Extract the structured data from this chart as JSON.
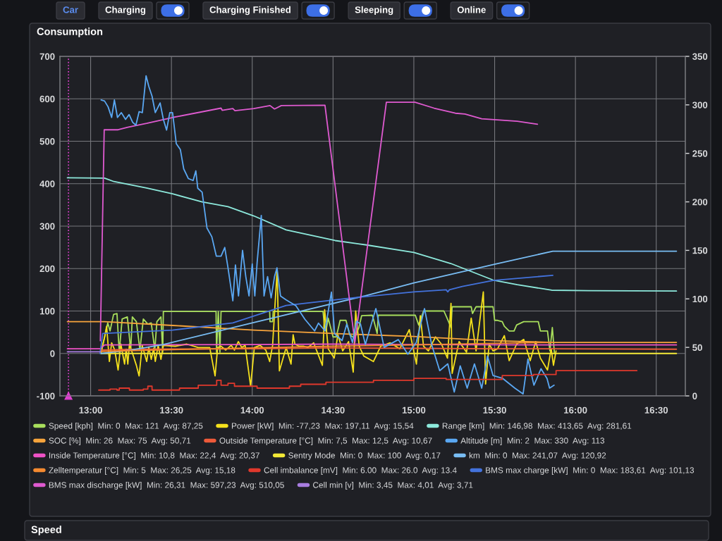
{
  "chart_data": {
    "type": "line",
    "title": "Consumption",
    "annotations": [
      "Car",
      "Charging",
      "Charging Finished",
      "Sleeping",
      "Online",
      "Speed"
    ],
    "xlim": [
      12.81,
      16.68
    ],
    "xticks": [
      {
        "value": 13,
        "label": "13:00"
      },
      {
        "value": 13.5,
        "label": "13:30"
      },
      {
        "value": 14,
        "label": "14:00"
      },
      {
        "value": 14.5,
        "label": "14:30"
      },
      {
        "value": 15,
        "label": "15:00"
      },
      {
        "value": 15.5,
        "label": "15:30"
      },
      {
        "value": 16,
        "label": "16:00"
      },
      {
        "value": 16.5,
        "label": "16:30"
      }
    ],
    "ylim": [
      -100,
      700
    ],
    "yticks": [
      -100,
      0,
      100,
      200,
      300,
      400,
      500,
      600,
      700
    ],
    "y2lim": [
      0,
      350
    ],
    "y2ticks": [
      0,
      50,
      100,
      150,
      200,
      250,
      300,
      350
    ],
    "grid": true,
    "legend": "bottom",
    "ref_lines": [
      {
        "axis": "x",
        "value": 12.863,
        "color": "#e040d0",
        "line_style": "dotted"
      }
    ],
    "series": [
      {
        "name": "Speed [kph]  Min: 0  Max: 121  Avg: 87,25",
        "color": "#a8de5c",
        "x": [
          13.064,
          13.085,
          13.106,
          13.12,
          13.142,
          13.163,
          13.177,
          13.195,
          13.227,
          13.248,
          13.258,
          13.283,
          13.305,
          13.326,
          13.354,
          13.375,
          13.397,
          13.41,
          13.435,
          13.446,
          13.45,
          13.776,
          13.779,
          13.79,
          13.8,
          13.807,
          14.108,
          14.11,
          14.126,
          14.13,
          14.438,
          14.448,
          14.456,
          14.47,
          14.5,
          14.52,
          14.544,
          14.58,
          14.603,
          14.633,
          14.66,
          14.677,
          14.743,
          14.75,
          14.773,
          14.78,
          15.009,
          15.03,
          15.06,
          15.186,
          15.208,
          15.23,
          15.237,
          15.355,
          15.363,
          15.385,
          15.49,
          15.5,
          15.518,
          15.547,
          15.56,
          15.59,
          15.62,
          15.636,
          15.68,
          15.77,
          15.783,
          15.827,
          15.842,
          15.857,
          15.87
        ],
        "values": [
          0,
          36,
          72,
          53,
          92,
          94,
          3,
          81,
          86,
          8,
          86,
          75,
          8,
          81,
          69,
          72,
          8,
          75,
          86,
          3,
          99,
          99,
          3,
          99,
          3,
          99,
          99,
          75,
          75,
          99,
          99,
          61,
          53,
          83,
          39,
          39,
          78,
          78,
          44,
          36,
          61,
          89,
          90,
          81,
          47,
          90,
          90,
          67,
          100,
          100,
          81,
          61,
          110,
          110,
          94,
          110,
          110,
          78,
          78,
          75,
          64,
          53,
          53,
          67,
          75,
          75,
          53,
          53,
          6,
          61,
          0
        ]
      },
      {
        "name": "Power [kW]  Min: -77,23  Max: 197,11  Avg: 15,54",
        "color": "#f4e01c",
        "x": [
          13.064,
          13.085,
          13.099,
          13.116,
          13.13,
          13.149,
          13.17,
          13.187,
          13.21,
          13.22,
          13.23,
          13.24,
          13.266,
          13.283,
          13.3,
          13.319,
          13.347,
          13.36,
          13.375,
          13.39,
          13.4,
          13.418,
          13.435,
          13.45,
          13.524,
          13.595,
          13.666,
          13.737,
          13.77,
          13.786,
          13.807,
          13.836,
          13.87,
          13.89,
          13.914,
          13.935,
          13.956,
          13.99,
          14.013,
          14.048,
          14.084,
          14.108,
          14.126,
          14.154,
          14.168,
          14.21,
          14.24,
          14.253,
          14.264,
          14.29,
          14.32,
          14.345,
          14.38,
          14.434,
          14.448,
          14.47,
          14.507,
          14.53,
          14.56,
          14.596,
          14.625,
          14.64,
          14.662,
          14.69,
          14.75,
          14.795,
          14.854,
          14.913,
          14.972,
          15.016,
          15.04,
          15.06,
          15.09,
          15.134,
          15.171,
          15.208,
          15.23,
          15.237,
          15.28,
          15.326,
          15.355,
          15.385,
          15.43,
          15.444,
          15.466,
          15.49,
          15.518,
          15.56,
          15.59,
          15.636,
          15.68,
          15.72,
          15.754,
          15.783,
          15.827,
          15.85,
          15.864,
          15.88
        ],
        "values": [
          3,
          36,
          64,
          -19,
          25,
          8,
          -39,
          22,
          -25,
          10,
          -25,
          22,
          -8,
          -28,
          -53,
          19,
          -19,
          15,
          -14,
          12,
          -19,
          19,
          -14,
          19,
          17,
          22,
          14,
          14,
          -53,
          14,
          17,
          8,
          19,
          8,
          28,
          14,
          19,
          -77,
          14,
          19,
          8,
          -19,
          19,
          197,
          -41,
          14,
          -25,
          44,
          22,
          17,
          17,
          14,
          25,
          -28,
          103,
          11,
          -11,
          44,
          6,
          28,
          -44,
          100,
          17,
          -6,
          -19,
          17,
          25,
          11,
          56,
          -25,
          89,
          17,
          6,
          39,
          22,
          -11,
          118,
          -47,
          28,
          3,
          83,
          6,
          145,
          -72,
          22,
          6,
          11,
          42,
          -17,
          22,
          33,
          -17,
          28,
          -11,
          -39,
          11,
          -28,
          6
        ]
      },
      {
        "name": "Range [km]  Min: 146,98  Max: 413,65  Avg: 281,61",
        "color": "#8de9dc",
        "x": [
          12.856,
          13.086,
          13.144,
          13.346,
          13.507,
          13.69,
          13.85,
          14.01,
          14.21,
          14.513,
          14.7,
          15.0,
          15.228,
          15.49,
          15.64,
          15.853,
          16.08,
          16.625
        ],
        "values": [
          414,
          413,
          405,
          390,
          376,
          357,
          346,
          324,
          291,
          266,
          256,
          238,
          212,
          173,
          162,
          149,
          148,
          147
        ]
      },
      {
        "name": "SOC [%]  Min: 26  Max: 75  Avg: 50,71",
        "color": "#f7a43c",
        "x": [
          12.856,
          13.086,
          13.507,
          14.01,
          14.5,
          15.0,
          15.49,
          15.86,
          16.625
        ],
        "values": [
          75,
          75,
          66,
          55,
          47,
          40,
          30,
          26,
          26
        ]
      },
      {
        "name": "Outside Temperature [°C]  Min: 7,5  Max: 12,5  Avg: 10,67",
        "color": "#ee5a3a",
        "x": [
          13.064,
          13.3,
          14.0,
          14.5,
          15.0,
          15.5,
          15.86,
          16.625
        ],
        "values": [
          8,
          10,
          11,
          13,
          12,
          11,
          11,
          10
        ]
      },
      {
        "name": "Altitude [m]  Min: 2  Max: 330  Avg: 113",
        "color": "#5aa7f2",
        "axis": "y2",
        "x": [
          13.065,
          13.086,
          13.108,
          13.13,
          13.147,
          13.166,
          13.19,
          13.216,
          13.238,
          13.26,
          13.28,
          13.3,
          13.32,
          13.343,
          13.36,
          13.38,
          13.4,
          13.43,
          13.45,
          13.47,
          13.49,
          13.507,
          13.53,
          13.555,
          13.576,
          13.605,
          13.634,
          13.651,
          13.663,
          13.69,
          13.72,
          13.75,
          13.778,
          13.807,
          13.83,
          13.85,
          13.88,
          13.896,
          13.915,
          13.94,
          13.96,
          13.98,
          14.0,
          14.016,
          14.03,
          14.056,
          14.073,
          14.095,
          14.117,
          14.138,
          14.153,
          14.175,
          14.21,
          14.27,
          14.326,
          14.386,
          14.41,
          14.45,
          14.49,
          14.51,
          14.556,
          14.585,
          14.62,
          14.645,
          14.67,
          14.7,
          14.765,
          14.816,
          14.904,
          14.963,
          15.015,
          15.066,
          15.11,
          15.16,
          15.21,
          15.25,
          15.287,
          15.33,
          15.375,
          15.42,
          15.456,
          15.49,
          15.55,
          15.625,
          15.676,
          15.706,
          15.743,
          15.787,
          15.824,
          15.84,
          15.868
        ],
        "values": [
          305,
          304,
          298,
          287,
          305,
          287,
          292,
          285,
          290,
          282,
          279,
          293,
          292,
          330,
          319,
          309,
          292,
          302,
          285,
          274,
          292,
          292,
          260,
          254,
          234,
          224,
          222,
          232,
          214,
          210,
          173,
          164,
          144,
          144,
          153,
          132,
          98,
          135,
          103,
          150,
          123,
          103,
          136,
          103,
          137,
          186,
          103,
          123,
          101,
          123,
          132,
          103,
          99,
          93,
          79,
          67,
          75,
          67,
          107,
          64,
          57,
          74,
          55,
          77,
          74,
          53,
          90,
          50,
          58,
          43,
          55,
          90,
          53,
          26,
          33,
          4,
          31,
          8,
          33,
          8,
          41,
          21,
          18,
          8,
          2,
          38,
          11,
          28,
          18,
          8,
          11
        ]
      },
      {
        "name": "Inside Temperature [°C]  Min: 10,8  Max: 22,4  Avg: 20,37",
        "color": "#ef52c6",
        "x": [
          12.856,
          13.058,
          13.086,
          14.0,
          14.5,
          15.0,
          15.85,
          16.625
        ],
        "values": [
          11,
          11,
          20,
          21,
          22,
          21,
          20,
          20
        ]
      },
      {
        "name": "Sentry Mode  Min: 0  Max: 100  Avg: 0,17",
        "color": "#f2e836",
        "x": [
          13.064,
          16.625
        ],
        "values": [
          0,
          0
        ]
      },
      {
        "name": "km  Min: 0  Max: 241,07  Avg: 120,92",
        "color": "#79bdf4",
        "x": [
          13.065,
          13.25,
          13.45,
          14.0,
          14.7,
          15.0,
          15.5,
          15.86,
          16.625
        ],
        "values": [
          0,
          8,
          21,
          72,
          136,
          166,
          210,
          241,
          241
        ]
      },
      {
        "name": "Zelltemperatur [°C]  Min: 5  Max: 26,25  Avg: 15,18",
        "color": "#f58a30",
        "x": [
          13.064,
          13.5,
          14.0,
          14.5,
          15.0,
          15.5,
          15.86
        ],
        "values": [
          5,
          9,
          13,
          17,
          20,
          24,
          26
        ]
      },
      {
        "name": "Cell imbalance [mV]  Min: 6.00  Max: 26.0  Avg: 13.4",
        "color": "#e0382c",
        "type": "step",
        "axis": "y2",
        "x": [
          13.05,
          13.12,
          13.163,
          13.177,
          13.24,
          13.326,
          13.354,
          13.38,
          13.5,
          13.55,
          13.666,
          13.78,
          13.807,
          13.85,
          13.89,
          14.03,
          14.23,
          14.3,
          14.456,
          14.603,
          14.75,
          15.0,
          15.2,
          15.444,
          15.547,
          15.74,
          15.88,
          16.38
        ],
        "values": [
          6,
          7,
          6,
          8,
          6,
          7,
          10,
          6,
          6,
          8,
          11,
          16,
          11,
          13,
          10,
          8,
          10,
          12,
          14,
          14,
          16,
          18,
          17,
          17,
          21,
          22,
          26,
          26
        ]
      },
      {
        "name": "BMS max charge [kW]  Min: 0  Max: 183,61  Avg: 101,13",
        "color": "#4372dc",
        "x": [
          13.058,
          13.075,
          13.507,
          13.88,
          14.01,
          14.21,
          14.6,
          15.0,
          15.2,
          15.21,
          15.22,
          15.3,
          15.49,
          15.86
        ],
        "values": [
          0,
          47,
          55,
          72,
          88,
          113,
          130,
          145,
          150,
          145,
          150,
          158,
          172,
          184
        ]
      },
      {
        "name": "BMS max discharge [kW]  Min: 26,31  Max: 597,23  Avg: 510,05",
        "color": "#df5ad0",
        "x": [
          13.06,
          13.084,
          13.17,
          13.23,
          13.346,
          13.507,
          13.807,
          13.814,
          13.88,
          13.893,
          14.01,
          14.11,
          14.138,
          14.18,
          14.45,
          14.635,
          14.83,
          15.007,
          15.125,
          15.257,
          15.316,
          15.42,
          15.64,
          15.765
        ],
        "values": [
          30,
          527,
          527,
          533,
          542,
          556,
          578,
          573,
          577,
          572,
          577,
          584,
          576,
          584,
          585,
          26,
          592,
          592,
          578,
          566,
          564,
          553,
          547,
          540
        ]
      },
      {
        "name": "Cell min [v]  Min: 3,45  Max: 4,01  Avg: 3,71",
        "color": "#a87de0",
        "x": [
          12.856,
          13.06
        ],
        "values": [
          4,
          4
        ]
      }
    ]
  }
}
